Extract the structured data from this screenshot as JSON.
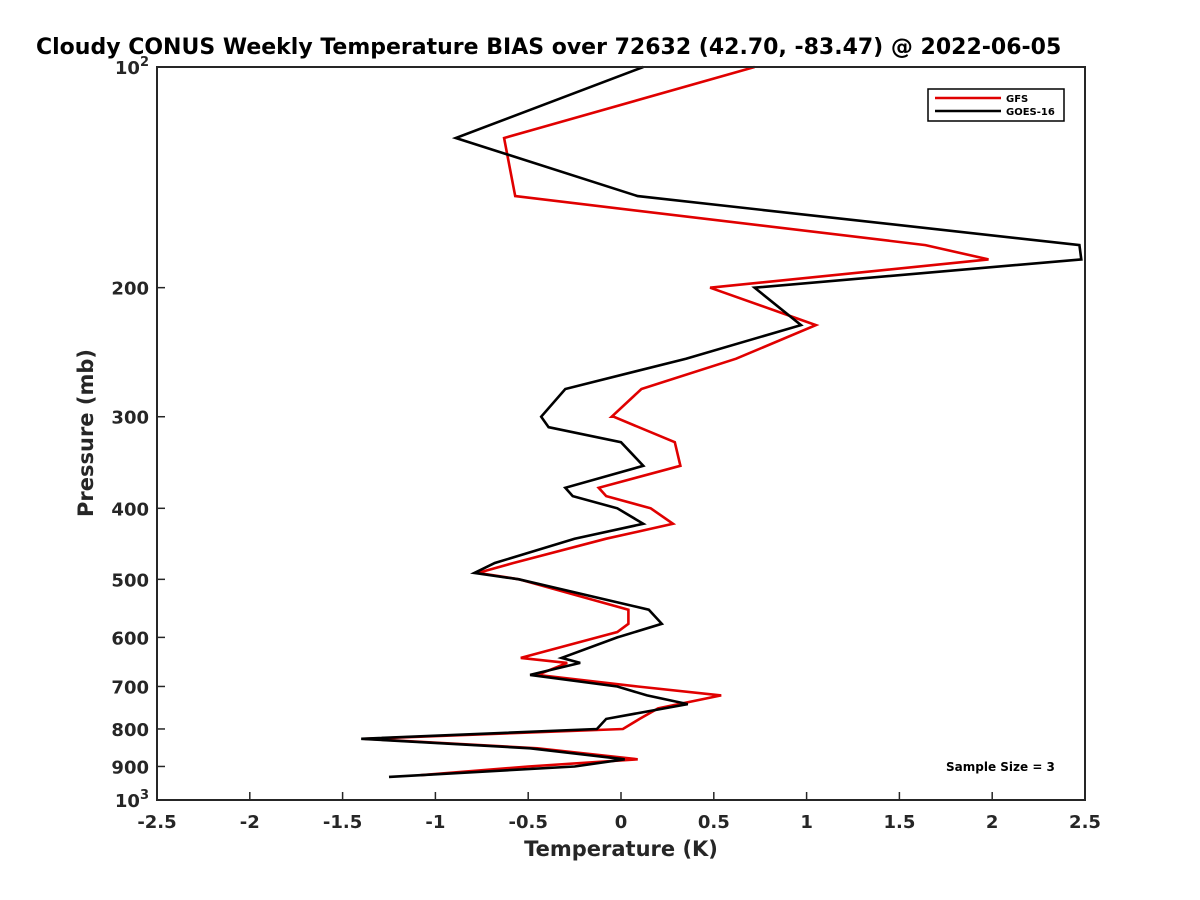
{
  "chart_data": {
    "type": "line",
    "title": "Cloudy CONUS Weekly Temperature BIAS over 72632 (42.70, -83.47) @ 2022-06-05",
    "xlabel": "Temperature (K)",
    "ylabel": "Pressure (mb)",
    "xlim": [
      -2.5,
      2.5
    ],
    "ylim": [
      1000,
      100
    ],
    "yscale": "log",
    "y_reversed": true,
    "grid": false,
    "legend_position": "top-right",
    "x_ticks": [
      "-2.5",
      "-2",
      "-1.5",
      "-1",
      "-0.5",
      "0",
      "0.5",
      "1",
      "1.5",
      "2",
      "2.5"
    ],
    "x_tick_values": [
      -2.5,
      -2,
      -1.5,
      -1,
      -0.5,
      0,
      0.5,
      1,
      1.5,
      2,
      2.5
    ],
    "y_ticks": [
      {
        "value": 100,
        "base": "10",
        "exp": "2",
        "label": ""
      },
      {
        "value": 200,
        "label": "200"
      },
      {
        "value": 300,
        "label": "300"
      },
      {
        "value": 400,
        "label": "400"
      },
      {
        "value": 500,
        "label": "500"
      },
      {
        "value": 600,
        "label": "600"
      },
      {
        "value": 700,
        "label": "700"
      },
      {
        "value": 800,
        "label": "800"
      },
      {
        "value": 900,
        "label": "900"
      },
      {
        "value": 1000,
        "base": "10",
        "exp": "3",
        "label": ""
      }
    ],
    "annotation": "Sample Size = 3",
    "series": [
      {
        "name": "GFS",
        "color": "#e00000",
        "points": [
          {
            "x": 0.72,
            "y": 100
          },
          {
            "x": -0.63,
            "y": 125
          },
          {
            "x": -0.57,
            "y": 150
          },
          {
            "x": 1.64,
            "y": 175
          },
          {
            "x": 1.98,
            "y": 183
          },
          {
            "x": 0.48,
            "y": 200
          },
          {
            "x": 1.05,
            "y": 225
          },
          {
            "x": 0.62,
            "y": 250
          },
          {
            "x": 0.11,
            "y": 275
          },
          {
            "x": -0.05,
            "y": 300
          },
          {
            "x": -0.04,
            "y": 300
          },
          {
            "x": 0.29,
            "y": 325
          },
          {
            "x": 0.32,
            "y": 350
          },
          {
            "x": -0.12,
            "y": 375
          },
          {
            "x": -0.08,
            "y": 385
          },
          {
            "x": 0.16,
            "y": 400
          },
          {
            "x": 0.28,
            "y": 420
          },
          {
            "x": -0.08,
            "y": 440
          },
          {
            "x": -0.58,
            "y": 475
          },
          {
            "x": -0.77,
            "y": 490
          },
          {
            "x": -0.55,
            "y": 500
          },
          {
            "x": 0.04,
            "y": 550
          },
          {
            "x": 0.04,
            "y": 575
          },
          {
            "x": -0.02,
            "y": 590
          },
          {
            "x": -0.54,
            "y": 640
          },
          {
            "x": -0.29,
            "y": 650
          },
          {
            "x": -0.45,
            "y": 675
          },
          {
            "x": 0.09,
            "y": 700
          },
          {
            "x": 0.54,
            "y": 720
          },
          {
            "x": 0.2,
            "y": 750
          },
          {
            "x": 0.1,
            "y": 775
          },
          {
            "x": 0.01,
            "y": 800
          },
          {
            "x": -1.38,
            "y": 825
          },
          {
            "x": -0.45,
            "y": 850
          },
          {
            "x": 0.09,
            "y": 880
          },
          {
            "x": -0.5,
            "y": 900
          },
          {
            "x": -1.08,
            "y": 925
          }
        ]
      },
      {
        "name": "GOES-16",
        "color": "#000000",
        "points": [
          {
            "x": 0.12,
            "y": 100
          },
          {
            "x": -0.89,
            "y": 125
          },
          {
            "x": 0.09,
            "y": 150
          },
          {
            "x": 2.47,
            "y": 175
          },
          {
            "x": 2.48,
            "y": 183
          },
          {
            "x": 0.72,
            "y": 200
          },
          {
            "x": 0.97,
            "y": 225
          },
          {
            "x": 0.35,
            "y": 250
          },
          {
            "x": -0.3,
            "y": 275
          },
          {
            "x": -0.43,
            "y": 300
          },
          {
            "x": -0.39,
            "y": 310
          },
          {
            "x": 0.0,
            "y": 325
          },
          {
            "x": 0.12,
            "y": 350
          },
          {
            "x": -0.3,
            "y": 375
          },
          {
            "x": -0.26,
            "y": 385
          },
          {
            "x": -0.02,
            "y": 400
          },
          {
            "x": 0.12,
            "y": 420
          },
          {
            "x": -0.25,
            "y": 440
          },
          {
            "x": -0.68,
            "y": 475
          },
          {
            "x": -0.79,
            "y": 490
          },
          {
            "x": -0.55,
            "y": 500
          },
          {
            "x": 0.15,
            "y": 550
          },
          {
            "x": 0.22,
            "y": 575
          },
          {
            "x": -0.02,
            "y": 600
          },
          {
            "x": -0.32,
            "y": 640
          },
          {
            "x": -0.22,
            "y": 650
          },
          {
            "x": -0.49,
            "y": 675
          },
          {
            "x": -0.02,
            "y": 700
          },
          {
            "x": 0.14,
            "y": 720
          },
          {
            "x": 0.36,
            "y": 740
          },
          {
            "x": -0.08,
            "y": 775
          },
          {
            "x": -0.13,
            "y": 800
          },
          {
            "x": -1.4,
            "y": 825
          },
          {
            "x": -0.49,
            "y": 850
          },
          {
            "x": 0.02,
            "y": 880
          },
          {
            "x": -0.25,
            "y": 900
          },
          {
            "x": -1.25,
            "y": 930
          }
        ]
      }
    ]
  }
}
